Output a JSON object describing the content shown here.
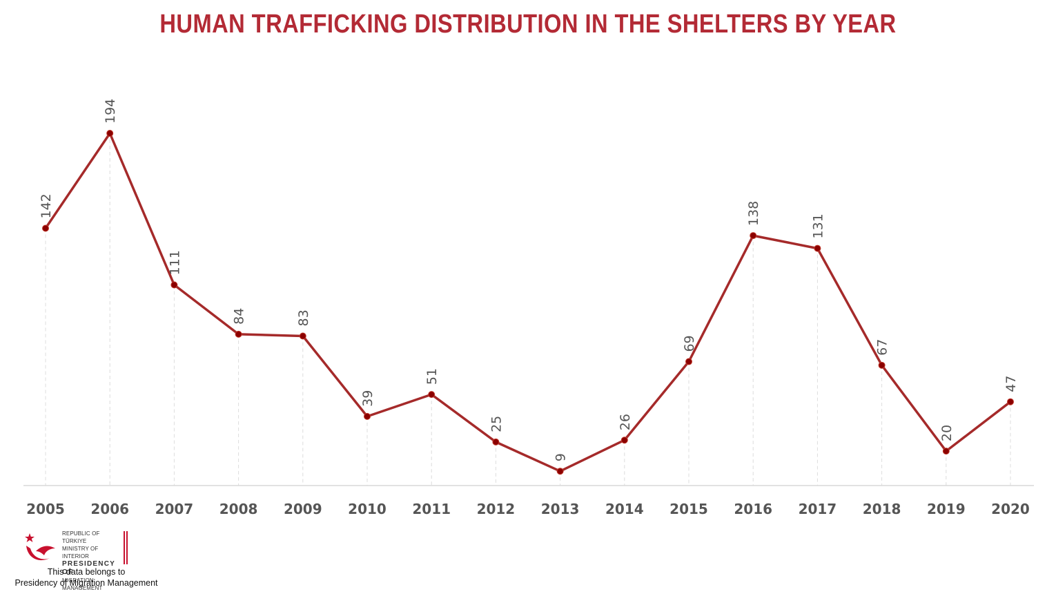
{
  "chart_data": {
    "type": "line",
    "title": "HUMAN TRAFFICKING DISTRIBUTION IN THE SHELTERS BY YEAR",
    "x": [
      "2005",
      "2006",
      "2007",
      "2008",
      "2009",
      "2010",
      "2011",
      "2012",
      "2013",
      "2014",
      "2015",
      "2016",
      "2017",
      "2018",
      "2019",
      "2020"
    ],
    "values": [
      142,
      194,
      111,
      84,
      83,
      39,
      51,
      25,
      9,
      26,
      69,
      138,
      131,
      67,
      20,
      47
    ],
    "xlabel": "",
    "ylabel": "",
    "ylim": [
      0,
      200
    ],
    "grid": "vertical dashed drop lines at each year",
    "legend": "none",
    "data_labels": true,
    "colors": {
      "line": "#a52a2a",
      "marker": "#8b0000",
      "title": "#b32a35",
      "axis": "#d9d9d9",
      "tick_text": "#555555",
      "label_text": "#555555"
    }
  },
  "logo": {
    "line1": "REPUBLIC OF TÜRKIYE",
    "line2": "MINISTRY OF INTERIOR",
    "line3": "PRESIDENCY OF",
    "line4": "MIGRATION MANAGEMENT",
    "icon": "crescent-star-bird-icon",
    "accent": "#c8102e"
  },
  "footer": {
    "line1": "This data belongs to",
    "line2": "Presidency of Migration Management"
  }
}
